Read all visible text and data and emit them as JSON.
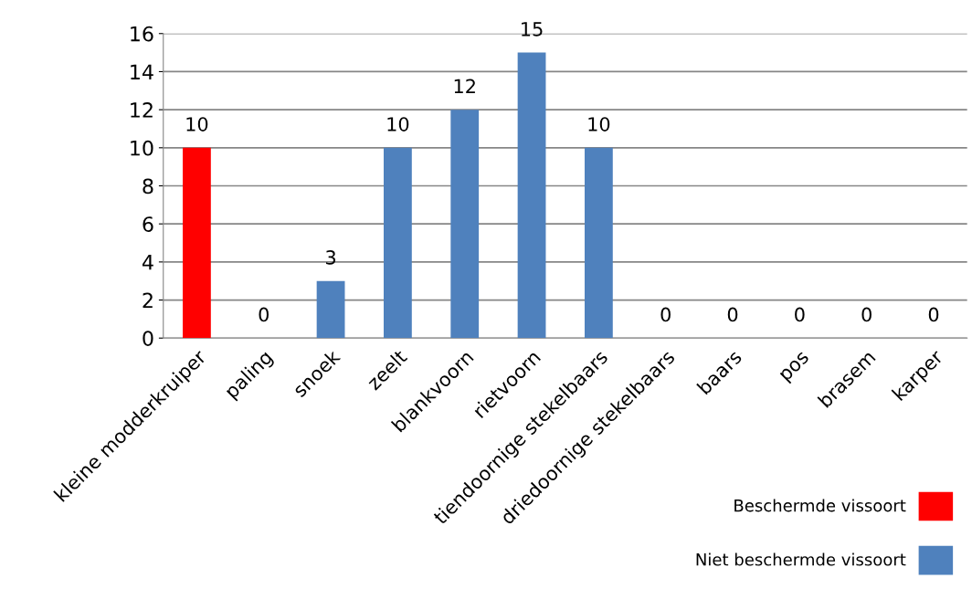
{
  "chart_data": {
    "type": "bar",
    "categories": [
      "kleine modderkruiper",
      "paling",
      "snoek",
      "zeelt",
      "blankvoorn",
      "rietvoorn",
      "tiendoornige stekelbaars",
      "driedoornige stekelbaars",
      "baars",
      "pos",
      "brasem",
      "karper"
    ],
    "series": [
      {
        "name": "Beschermde vissoort",
        "color": "#ff0000",
        "values": [
          10,
          null,
          null,
          null,
          null,
          null,
          null,
          null,
          null,
          null,
          null,
          null
        ]
      },
      {
        "name": "Niet beschermde vissoort",
        "color": "#4f81bd",
        "values": [
          null,
          0,
          3,
          10,
          12,
          15,
          10,
          0,
          0,
          0,
          0,
          0
        ]
      }
    ],
    "ylim": [
      0,
      16
    ],
    "yticks": [
      0,
      2,
      4,
      6,
      8,
      10,
      12,
      14,
      16
    ],
    "grid": "y",
    "data_labels": true,
    "legend": "bottom right"
  }
}
